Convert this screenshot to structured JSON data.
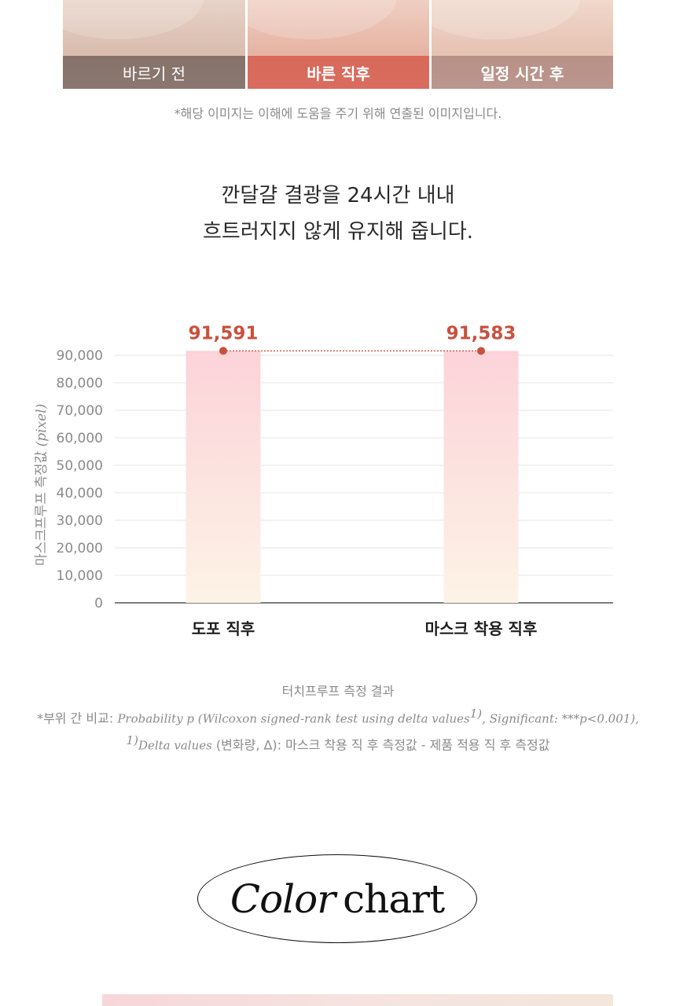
{
  "photos": [
    {
      "caption": "바르기 전"
    },
    {
      "caption": "바른 직후"
    },
    {
      "caption": "일정 시간 후"
    }
  ],
  "image_note": "*해당 이미지는 이해에 도움을 주기 위해 연출된 이미지입니다.",
  "headline": {
    "line1": "깐달걀 결광을 24시간 내내",
    "line2": "흐트러지지 않게 유지해 줍니다."
  },
  "colors": {
    "accent_red": "#c9503f",
    "bar_top": "#fcd3d9",
    "bar_bottom": "#fdf3e6",
    "grid": "#e6e6e6",
    "axis_text": "#8a8a8a"
  },
  "chart_data": {
    "type": "bar",
    "categories": [
      "도포 직후",
      "마스크 착용 직후"
    ],
    "values": [
      91591,
      91583
    ],
    "value_labels": [
      "91,591",
      "91,583"
    ],
    "ylabel_main": "마스크프루프 측정값",
    "ylabel_unit": "(pixel)",
    "ylim": [
      0,
      90000
    ],
    "yticks": [
      0,
      10000,
      20000,
      30000,
      40000,
      50000,
      60000,
      70000,
      80000,
      90000
    ],
    "ytick_labels": [
      "0",
      "10,000",
      "20,000",
      "30,000",
      "40,000",
      "50,000",
      "60,000",
      "70,000",
      "80,000",
      "90,000"
    ],
    "grid": true,
    "connector": "dotted"
  },
  "notes": {
    "title": "터치프루프 측정 결과",
    "line2_prefix": "*부위 간 비교: ",
    "line2_italic_a": "Probability p (Wilcoxon signed-rank test using delta values",
    "line2_sup": "1)",
    "line2_italic_b": ", Significant: ***p<0.001),",
    "line3_sup": "1)",
    "line3_italic": "Delta values",
    "line3_rest": " (변화량, Δ): 마스크 착용 직 후 측정값 - 제품 적용 직 후 측정값"
  },
  "color_chart": {
    "word1": "Color",
    "word2": "chart"
  }
}
